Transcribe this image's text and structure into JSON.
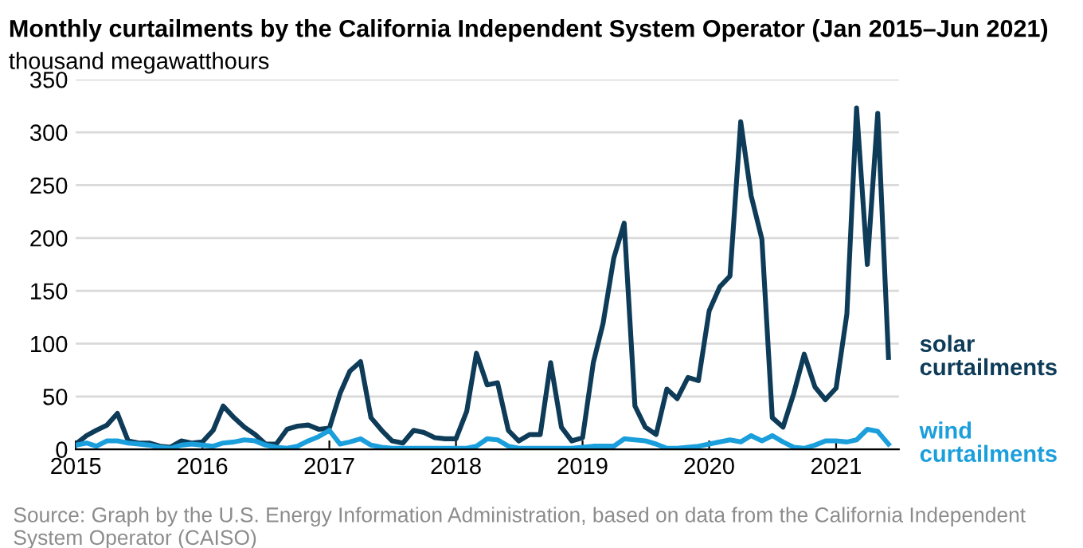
{
  "chart_data": {
    "type": "line",
    "title": "Monthly curtailments by the California Independent System Operator (Jan 2015–Jun 2021)",
    "ylabel": "thousand megawatthours",
    "x": [
      "2015-01",
      "2015-02",
      "2015-03",
      "2015-04",
      "2015-05",
      "2015-06",
      "2015-07",
      "2015-08",
      "2015-09",
      "2015-10",
      "2015-11",
      "2015-12",
      "2016-01",
      "2016-02",
      "2016-03",
      "2016-04",
      "2016-05",
      "2016-06",
      "2016-07",
      "2016-08",
      "2016-09",
      "2016-10",
      "2016-11",
      "2016-12",
      "2017-01",
      "2017-02",
      "2017-03",
      "2017-04",
      "2017-05",
      "2017-06",
      "2017-07",
      "2017-08",
      "2017-09",
      "2017-10",
      "2017-11",
      "2017-12",
      "2018-01",
      "2018-02",
      "2018-03",
      "2018-04",
      "2018-05",
      "2018-06",
      "2018-07",
      "2018-08",
      "2018-09",
      "2018-10",
      "2018-11",
      "2018-12",
      "2019-01",
      "2019-02",
      "2019-03",
      "2019-04",
      "2019-05",
      "2019-06",
      "2019-07",
      "2019-08",
      "2019-09",
      "2019-10",
      "2019-11",
      "2019-12",
      "2020-01",
      "2020-02",
      "2020-03",
      "2020-04",
      "2020-05",
      "2020-06",
      "2020-07",
      "2020-08",
      "2020-09",
      "2020-10",
      "2020-11",
      "2020-12",
      "2021-01",
      "2021-02",
      "2021-03",
      "2021-04",
      "2021-05",
      "2021-06"
    ],
    "series": [
      {
        "name": "solar\ncurtailments",
        "color": "#0d3b58",
        "values": [
          5,
          13,
          18,
          23,
          34,
          8,
          6,
          6,
          3,
          2,
          8,
          6,
          7,
          18,
          41,
          30,
          21,
          14,
          5,
          5,
          19,
          22,
          23,
          19,
          20,
          53,
          74,
          83,
          30,
          18,
          8,
          6,
          18,
          16,
          11,
          10,
          10,
          36,
          91,
          61,
          63,
          18,
          8,
          14,
          14,
          82,
          21,
          8,
          11,
          82,
          119,
          181,
          214,
          41,
          21,
          14,
          57,
          48,
          68,
          65,
          131,
          154,
          164,
          310,
          240,
          199,
          30,
          21,
          53,
          90,
          59,
          47,
          58,
          128,
          323,
          175,
          318,
          87
        ]
      },
      {
        "name": "wind\ncurtailments",
        "color": "#1b9fdc",
        "values": [
          4,
          6,
          3,
          8,
          8,
          6,
          5,
          4,
          2,
          1,
          4,
          5,
          4,
          3,
          6,
          7,
          9,
          8,
          4,
          2,
          1,
          3,
          8,
          12,
          18,
          5,
          7,
          10,
          4,
          2,
          1,
          1,
          1,
          1,
          1,
          1,
          1,
          1,
          3,
          10,
          9,
          3,
          1,
          1,
          1,
          1,
          1,
          1,
          2,
          3,
          3,
          3,
          10,
          9,
          8,
          5,
          1,
          1,
          2,
          3,
          5,
          7,
          9,
          7,
          13,
          8,
          13,
          7,
          2,
          1,
          4,
          8,
          8,
          7,
          9,
          19,
          17,
          5
        ]
      }
    ],
    "xlim": [
      "2015-01",
      "2021-07"
    ],
    "xticks": [
      {
        "value": "2015-01",
        "label": "2015"
      },
      {
        "value": "2016-01",
        "label": "2016"
      },
      {
        "value": "2017-01",
        "label": "2017"
      },
      {
        "value": "2018-01",
        "label": "2018"
      },
      {
        "value": "2019-01",
        "label": "2019"
      },
      {
        "value": "2020-01",
        "label": "2020"
      },
      {
        "value": "2021-01",
        "label": "2021"
      }
    ],
    "ylim": [
      0,
      350
    ],
    "yticks": [
      0,
      50,
      100,
      150,
      200,
      250,
      300,
      350
    ],
    "grid": "y",
    "marker": "none",
    "line_style": "solid",
    "annotations": [
      "Source: Graph by the U.S. Energy Information Administration, based on data from the California Independent System Operator (CAISO)"
    ]
  }
}
